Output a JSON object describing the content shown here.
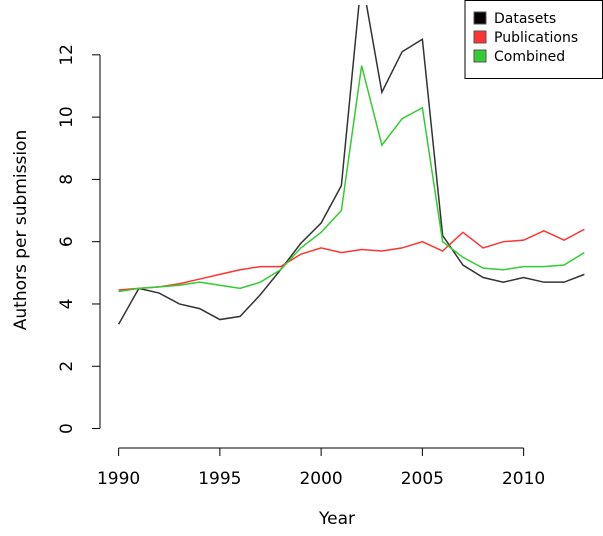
{
  "chart_data": {
    "type": "line",
    "x_label": "Year",
    "y_label": "Authors per submission",
    "x": [
      1990,
      1991,
      1992,
      1993,
      1994,
      1995,
      1996,
      1997,
      1998,
      1999,
      2000,
      2001,
      2002,
      2003,
      2004,
      2005,
      2006,
      2007,
      2008,
      2009,
      2010,
      2011,
      2012,
      2013
    ],
    "series": [
      {
        "name": "Datasets",
        "color": "#333333",
        "values": [
          3.35,
          4.5,
          4.35,
          4.0,
          3.85,
          3.5,
          3.6,
          4.3,
          5.1,
          5.95,
          6.6,
          7.8,
          14.5,
          10.8,
          12.1,
          12.5,
          6.2,
          5.25,
          4.85,
          4.7,
          4.85,
          4.7,
          4.7,
          4.95
        ]
      },
      {
        "name": "Publications",
        "color": "#ff3333",
        "values": [
          4.45,
          4.5,
          4.55,
          4.65,
          4.8,
          4.95,
          5.1,
          5.2,
          5.2,
          5.6,
          5.8,
          5.65,
          5.75,
          5.7,
          5.8,
          6.0,
          5.7,
          6.3,
          5.8,
          6.0,
          6.05,
          6.35,
          6.05,
          6.4
        ]
      },
      {
        "name": "Combined",
        "color": "#33cc33",
        "values": [
          4.4,
          4.5,
          4.55,
          4.6,
          4.7,
          4.6,
          4.5,
          4.7,
          5.1,
          5.8,
          6.3,
          7.0,
          11.65,
          9.1,
          9.95,
          10.3,
          6.0,
          5.5,
          5.15,
          5.1,
          5.2,
          5.2,
          5.25,
          5.65
        ]
      }
    ],
    "xlim": [
      1989.08,
      2013.92
    ],
    "xticks": [
      1990,
      1995,
      2000,
      2005,
      2010
    ],
    "ylim": [
      -0.4,
      13.6
    ],
    "yticks": [
      0,
      2,
      4,
      6,
      8,
      10,
      12
    ],
    "legend": "top-right"
  }
}
